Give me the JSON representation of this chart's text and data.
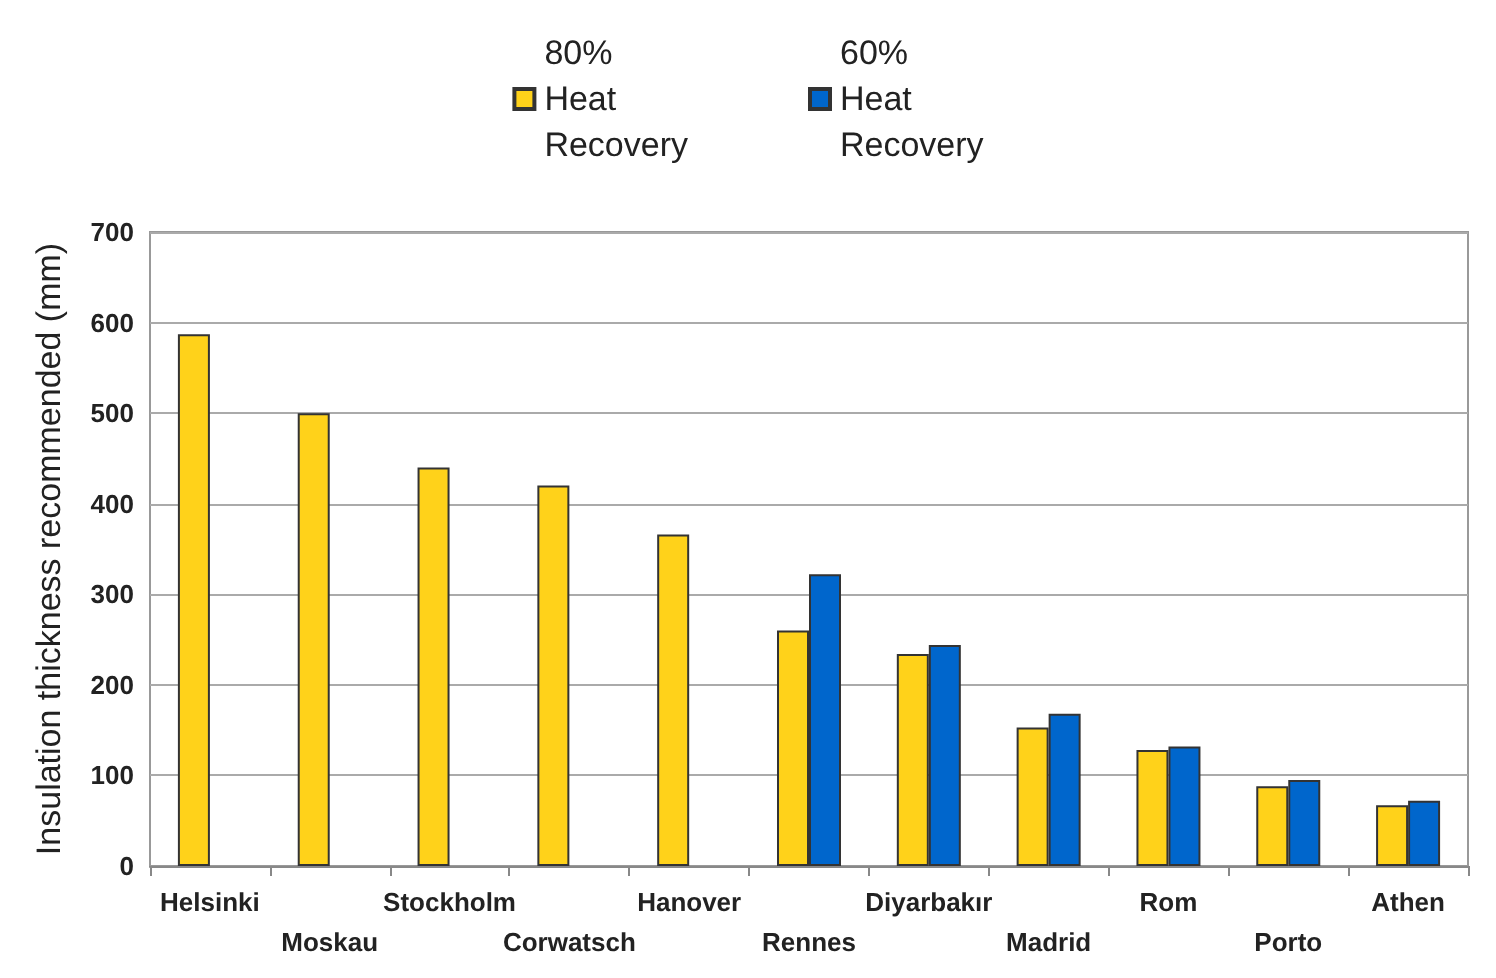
{
  "chart_data": {
    "type": "bar",
    "ylabel": "Insulation thickness recommended (mm)",
    "categories": [
      "Helsinki",
      "Moskau",
      "Stockholm",
      "Corwatsch",
      "Hanover",
      "Rennes",
      "Diyarbakır",
      "Madrid",
      "Rom",
      "Porto",
      "Athen"
    ],
    "series": [
      {
        "name": "80% Heat Recovery",
        "color": "#ffd21a",
        "values": [
          587,
          500,
          440,
          420,
          366,
          260,
          234,
          153,
          128,
          88,
          67
        ]
      },
      {
        "name": "60% Heat Recovery",
        "color": "#0066cc",
        "values": [
          null,
          null,
          null,
          null,
          null,
          322,
          244,
          168,
          132,
          95,
          72
        ]
      }
    ],
    "ylim": [
      0,
      700
    ],
    "yticks": [
      0,
      100,
      200,
      300,
      400,
      500,
      600,
      700
    ],
    "grid": "y",
    "legend": "top"
  }
}
